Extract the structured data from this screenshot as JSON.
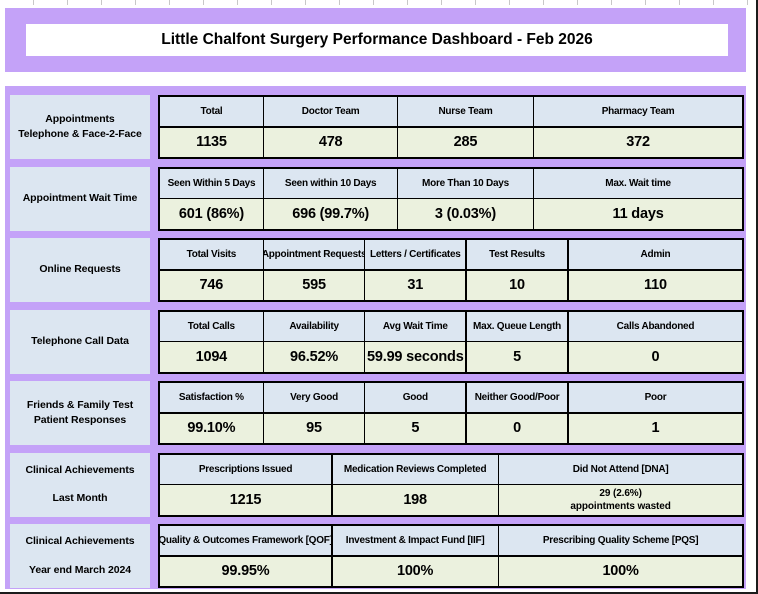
{
  "title": "Little Chalfont Surgery Performance Dashboard - Feb 2026",
  "colors": {
    "panel_purple": "#c4a2f8",
    "header_blue": "#dce6f1",
    "value_green": "#ebf1de",
    "border_black": "#000000",
    "title_bg_white": "#ffffff"
  },
  "rows": [
    {
      "label_line1": "Appointments",
      "label_line2": "Telephone & Face-2-Face",
      "headers": [
        "Total",
        "Doctor Team",
        "Nurse Team",
        "Pharmacy Team"
      ],
      "values": [
        "1135",
        "478",
        "285",
        "372"
      ]
    },
    {
      "label_line1": "Appointment Wait Time",
      "label_line2": "",
      "headers": [
        "Seen Within 5 Days",
        "Seen within 10 Days",
        "More Than 10 Days",
        "Max. Wait time"
      ],
      "values": [
        "601 (86%)",
        "696 (99.7%)",
        "3 (0.03%)",
        "11 days"
      ]
    },
    {
      "label_line1": "Online Requests",
      "label_line2": "",
      "headers": [
        "Total Visits",
        "Appointment Requests",
        "Letters / Certificates",
        "Test Results",
        "Admin"
      ],
      "values": [
        "746",
        "595",
        "31",
        "10",
        "110"
      ]
    },
    {
      "label_line1": "Telephone Call Data",
      "label_line2": "",
      "headers": [
        "Total Calls",
        "Availability",
        "Avg Wait Time",
        "Max. Queue Length",
        "Calls Abandoned"
      ],
      "values": [
        "1094",
        "96.52%",
        "59.99 seconds",
        "5",
        "0"
      ]
    },
    {
      "label_line1": "Friends & Family Test",
      "label_line2": "Patient Responses",
      "headers": [
        "Satisfaction %",
        "Very Good",
        "Good",
        "Neither Good/Poor",
        "Poor"
      ],
      "values": [
        "99.10%",
        "95",
        "5",
        "0",
        "1"
      ]
    },
    {
      "label_line1": "Clinical Achievements",
      "label_line2": "Last Month",
      "headers": [
        "Prescriptions Issued",
        "Medication Reviews Completed",
        "Did Not Attend [DNA]"
      ],
      "values": [
        "1215",
        "198"
      ],
      "dna": {
        "line1": "29 (2.6%)",
        "line2": "appointments wasted"
      }
    },
    {
      "label_line1": "Clinical Achievements",
      "label_line2": "Year end March 2024",
      "headers": [
        "Quality & Outcomes Framework [QOF]",
        "Investment & Impact Fund [IIF]",
        "Prescribing Quality Scheme [PQS]"
      ],
      "values": [
        "99.95%",
        "100%",
        "100%"
      ]
    }
  ]
}
